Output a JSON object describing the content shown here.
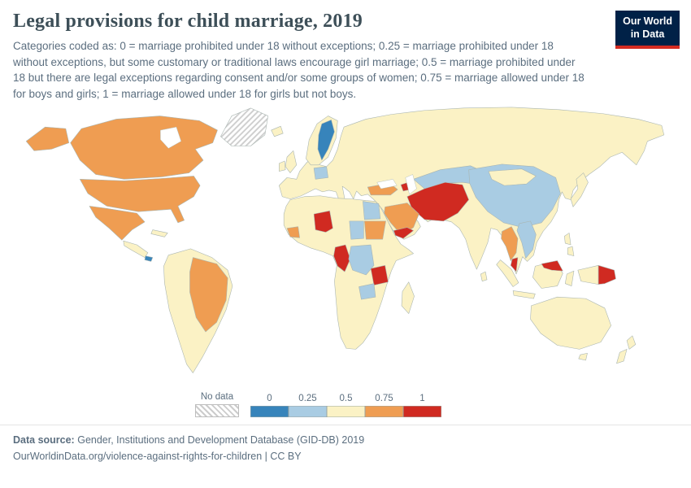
{
  "header": {
    "title": "Legal provisions for child marriage, 2019",
    "subtitle": "Categories coded as: 0 = marriage prohibited under 18 without exceptions; 0.25 = marriage prohibited under 18 without exceptions, but some customary or traditional laws encourage girl marriage; 0.5 = marriage prohibited under 18 but there are legal exceptions regarding consent and/or some groups of women; 0.75 = marriage allowed under 18 for boys and girls; 1 = marriage allowed under 18 for girls but not boys."
  },
  "logo": {
    "line1": "Our World",
    "line2": "in Data",
    "background": "#002147",
    "accent": "#d42b21"
  },
  "legend": {
    "no_data_label": "No data",
    "categories": [
      {
        "label": "0",
        "color": "#3784bb"
      },
      {
        "label": "0.25",
        "color": "#a9cce3"
      },
      {
        "label": "0.5",
        "color": "#fbf2c5"
      },
      {
        "label": "0.75",
        "color": "#ef9d52"
      },
      {
        "label": "1",
        "color": "#d02a21"
      }
    ]
  },
  "map": {
    "regions": {
      "greenland": "no-data",
      "alaska": "0.75",
      "canada": "0.75",
      "usa": "0.75",
      "mexico": "0.75",
      "central-america": "0.5",
      "panama": "0",
      "cuba": "0.5",
      "south-america": "0.5",
      "brazil": "0.75",
      "iceland": "0.5",
      "uk": "0.5",
      "ireland": "0.5",
      "eurasia": "0.5",
      "scandinavia": "0.5",
      "sweden": "0",
      "germany": "0.25",
      "turkey": "0.75",
      "azerbaijan": "1",
      "iran-afghanistan-turkmenistan": "1",
      "kazakhstan": "0.25",
      "china": "0.25",
      "mongolia": "0.5",
      "saudi-arabia": "0.75",
      "yemen": "1",
      "egypt": "0.25",
      "sudan": "0.75",
      "chad": "0.25",
      "mali": "1",
      "guinea": "0.75",
      "central-africa": "1",
      "drc": "0.25",
      "tanzania": "1",
      "zambia": "0.25",
      "africa": "0.5",
      "madagascar": "0.5",
      "myanmar-thailand": "0.75",
      "vietnam-laos": "0.25",
      "malaysia-peninsula": "1",
      "sri-lanka": "0.5",
      "japan": "0.5",
      "philippines": "0.5",
      "borneo": "0.5",
      "malaysia-borneo": "1",
      "sumatra": "0.5",
      "java": "0.5",
      "sulawesi": "0.5",
      "new-guinea-west": "0.5",
      "papua-new-guinea": "1",
      "australia": "0.5",
      "tasmania": "0.5",
      "new-zealand": "0.5"
    }
  },
  "footer": {
    "source_label": "Data source:",
    "source_text": "Gender, Institutions and Development Database (GID-DB) 2019",
    "line2": "OurWorldinData.org/violence-against-rights-for-children | CC BY"
  }
}
